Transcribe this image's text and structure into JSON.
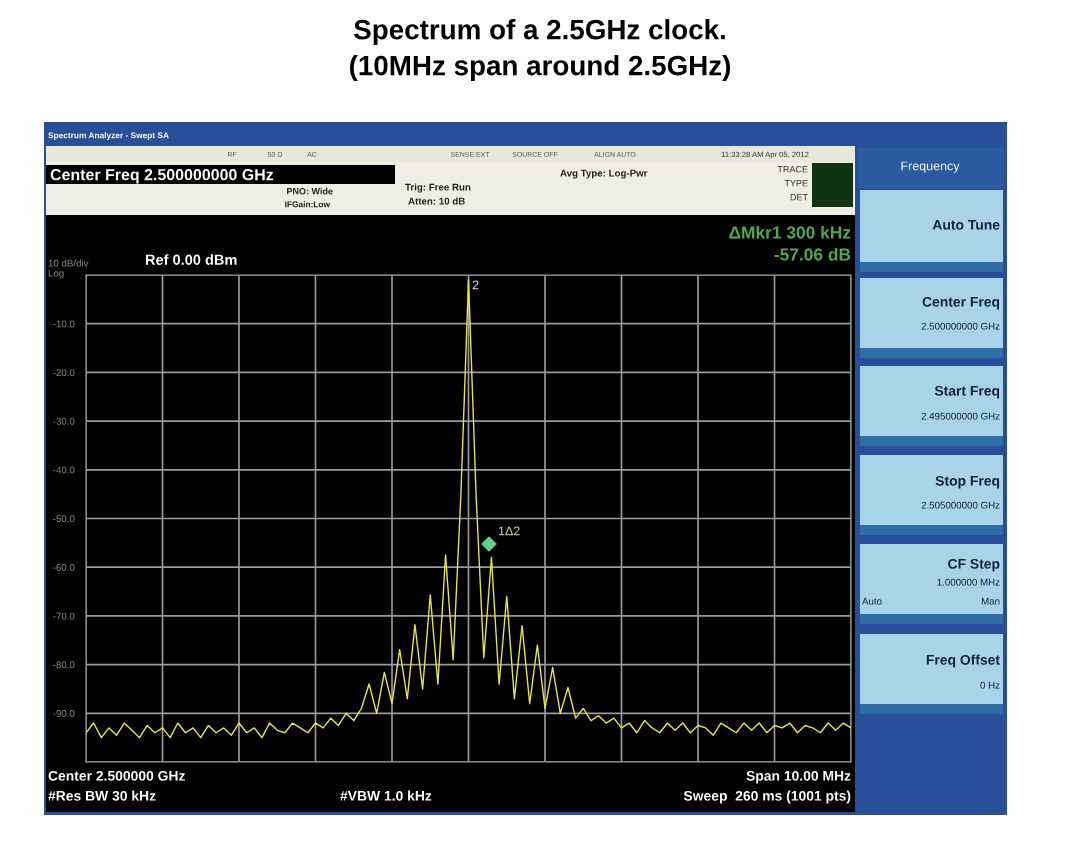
{
  "chart_data": {
    "type": "line",
    "title": "Spectrum of a 2.5GHz clock.\n(10MHz span around 2.5GHz)",
    "categories": [
      null,
      null,
      null,
      null,
      null,
      null,
      null,
      null,
      null,
      null,
      null,
      null,
      null,
      null,
      null,
      null,
      null,
      null,
      null,
      null,
      null,
      null,
      null,
      null,
      null,
      null,
      null,
      null,
      null,
      null,
      null,
      null,
      null,
      null,
      null,
      null,
      null,
      null,
      null,
      null,
      null,
      null,
      null,
      null,
      null,
      null,
      null,
      null,
      null,
      null,
      null,
      null,
      null,
      null,
      null,
      null,
      null,
      null,
      null,
      null,
      null,
      null,
      null,
      null,
      null,
      null,
      null,
      null,
      null,
      null,
      null,
      null,
      null,
      null,
      null,
      null,
      null,
      null,
      null,
      null,
      null,
      null,
      null,
      null,
      null,
      null,
      null,
      null,
      null,
      null,
      null,
      null,
      null,
      null,
      null,
      null,
      null,
      null,
      null,
      null,
      null
    ],
    "series": [
      {
        "color": "#e6e63c",
        "values": [
          -94,
          -92,
          -95,
          -93,
          -94.5,
          -92,
          -93.5,
          -95,
          -92.5,
          -94,
          -93,
          -95,
          -92,
          -94,
          -93,
          -95,
          -92.5,
          -94,
          -93,
          -94.5,
          -92,
          -94,
          -93,
          -95,
          -92,
          -93.5,
          -94,
          -92,
          -93,
          -94,
          -92,
          -93,
          -91,
          -92.5,
          -90,
          -91.5,
          -89,
          -84,
          -90,
          -81.6,
          -88,
          -76.9,
          -87,
          -71.8,
          -85,
          -65.7,
          -84,
          -57.5,
          -79,
          -45.3,
          -1,
          -45.5,
          -78.6,
          -58,
          -84,
          -66,
          -87,
          -72,
          -88,
          -76,
          -89,
          -80.6,
          -90,
          -84.7,
          -91,
          -89,
          -91.5,
          -90.5,
          -92,
          -91,
          -93,
          -92,
          -94,
          -91.5,
          -93,
          -94,
          -92,
          -93.5,
          -92,
          -94,
          -92.5,
          -93,
          -94.5,
          -92,
          -93,
          -94,
          -92,
          -93.5,
          -92,
          -94,
          -92.5,
          -93,
          -92,
          -94,
          -92.5,
          -93,
          -94,
          -92,
          -93.5,
          -92,
          -93
        ]
      }
    ],
    "ylim": [
      -100,
      0
    ],
    "yticks": [
      {
        "value": 0,
        "label": null
      },
      {
        "value": -10,
        "label": "-10.0"
      },
      {
        "value": -20,
        "label": "-20.0"
      },
      {
        "value": -30,
        "label": "-30.0"
      },
      {
        "value": -40,
        "label": "-40.0"
      },
      {
        "value": -50,
        "label": "-50.0"
      },
      {
        "value": -60,
        "label": "-60.0"
      },
      {
        "value": -70,
        "label": "-70.0"
      },
      {
        "value": -80,
        "label": "-80.0"
      },
      {
        "value": -90,
        "label": "-90.0"
      },
      {
        "value": -100,
        "label": null
      }
    ],
    "tick_labels": "y",
    "grid": true,
    "legend": false,
    "marker": "none",
    "line_style": "solid",
    "annotations": [
      "2",
      "1Δ2",
      "Spectrum Analyzer - Swept SA",
      "RF",
      "50 Ω",
      "AC",
      "SENSE:EXT",
      "SOURCE OFF",
      "ALIGN AUTO",
      "11:33:28 AM Apr 05, 2012",
      "Center Freq 2.500000000 GHz",
      "PNO: Wide",
      "IFGain:Low",
      "Trig: Free Run",
      "Atten: 10 dB",
      "Avg Type: Log-Pwr",
      "TRACE",
      "TYPE",
      "DET",
      "ΔMkr1 300 kHz",
      "-57.06 dB",
      "10 dB/div",
      "Log",
      "Ref 0.00 dBm",
      "Center 2.500000 GHz",
      "#Res BW 30 kHz",
      "#VBW 1.0 kHz",
      "Span 10.00 MHz",
      "Sweep  260 ms (1001 pts)",
      "Frequency",
      "Auto Tune",
      "Center Freq",
      "2.500000000 GHz",
      "Start Freq",
      "2.495000000 GHz",
      "Stop Freq",
      "2.505000000 GHz",
      "CF Step",
      "1.000000 MHz",
      "Auto",
      "Man",
      "Freq Offset",
      "0 Hz"
    ]
  }
}
